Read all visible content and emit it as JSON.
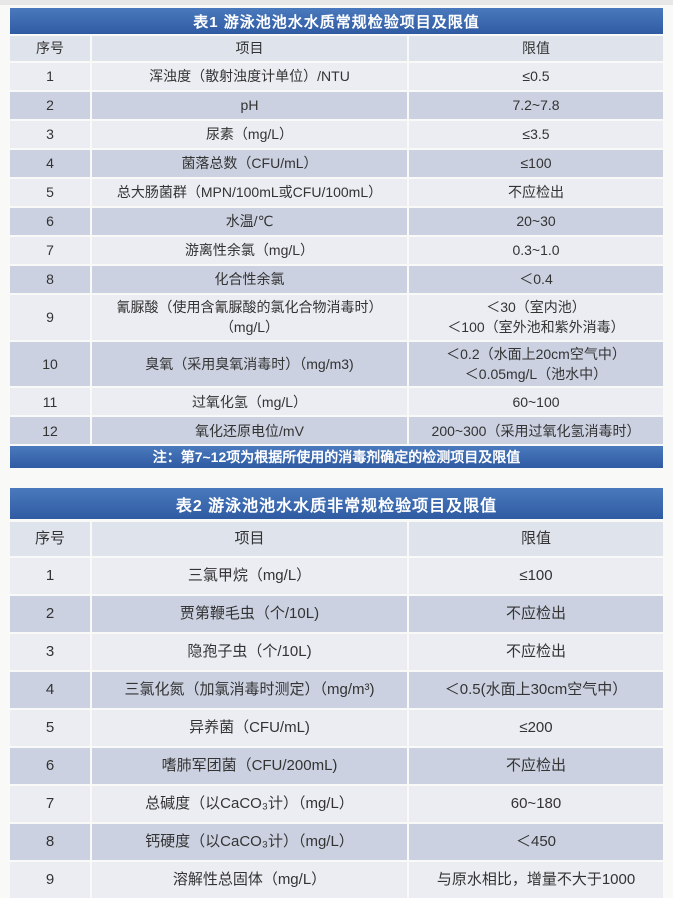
{
  "colors": {
    "title_bar": "#2f5ba2",
    "title_bar_light": "#4a79bd",
    "title_text": "#ffffff",
    "note_text": "#ffffff",
    "header_row": "#dfe3ec",
    "row_light": "#ebedf2",
    "row_dark": "#cbd1e0"
  },
  "tables": [
    {
      "title": "表1   游泳池池水水质常规检验项目及限值",
      "columns": [
        "序号",
        "项目",
        "限值"
      ],
      "rows": [
        {
          "no": "1",
          "item": "浑浊度（散射浊度计单位）/NTU",
          "limit": "≤0.5"
        },
        {
          "no": "2",
          "item": "pH",
          "limit": "7.2~7.8"
        },
        {
          "no": "3",
          "item": "尿素（mg/L）",
          "limit": "≤3.5"
        },
        {
          "no": "4",
          "item": "菌落总数（CFU/mL）",
          "limit": "≤100"
        },
        {
          "no": "5",
          "item": "总大肠菌群（MPN/100mL或CFU/100mL）",
          "limit": "不应检出"
        },
        {
          "no": "6",
          "item": "水温/℃",
          "limit": "20~30"
        },
        {
          "no": "7",
          "item": "游离性余氯（mg/L）",
          "limit": "0.3~1.0"
        },
        {
          "no": "8",
          "item": "化合性余氯",
          "limit": "＜0.4"
        },
        {
          "no": "9",
          "item": [
            "氰脲酸（使用含氰脲酸的氯化合物消毒时）",
            "（mg/L）"
          ],
          "limit": [
            "＜30（室内池）",
            "＜100（室外池和紫外消毒）"
          ]
        },
        {
          "no": "10",
          "item": "臭氧（采用臭氧消毒时）（mg/m3)",
          "limit": [
            "＜0.2（水面上20cm空气中）",
            "＜0.05mg/L（池水中）"
          ]
        },
        {
          "no": "11",
          "item": "过氧化氢（mg/L）",
          "limit": "60~100"
        },
        {
          "no": "12",
          "item": "氧化还原电位/mV",
          "limit": "200~300（采用过氧化氢消毒时）"
        }
      ],
      "note": "注：第7~12项为根据所使用的消毒剂确定的检测项目及限值"
    },
    {
      "title": "表2  游泳池池水水质非常规检验项目及限值",
      "columns": [
        "序号",
        "项目",
        "限值"
      ],
      "rows": [
        {
          "no": "1",
          "item": "三氯甲烷（mg/L）",
          "limit": "≤100"
        },
        {
          "no": "2",
          "item": "贾第鞭毛虫（个/10L)",
          "limit": "不应检出"
        },
        {
          "no": "3",
          "item": "隐孢子虫（个/10L)",
          "limit": "不应检出"
        },
        {
          "no": "4",
          "item": "三氯化氮（加氯消毒时测定）（mg/m³)",
          "limit": "＜0.5(水面上30cm空气中）"
        },
        {
          "no": "5",
          "item": "异养菌（CFU/mL)",
          "limit": "≤200"
        },
        {
          "no": "6",
          "item": "嗜肺军团菌（CFU/200mL)",
          "limit": "不应检出"
        },
        {
          "no": "7",
          "item": "总碱度（以CaCO₃计）（mg/L）",
          "limit": "60~180"
        },
        {
          "no": "8",
          "item": "钙硬度（以CaCO₃计）（mg/L）",
          "limit": "＜450"
        },
        {
          "no": "9",
          "item": "溶解性总固体（mg/L）",
          "limit": "与原水相比，增量不大于1000"
        }
      ]
    }
  ]
}
